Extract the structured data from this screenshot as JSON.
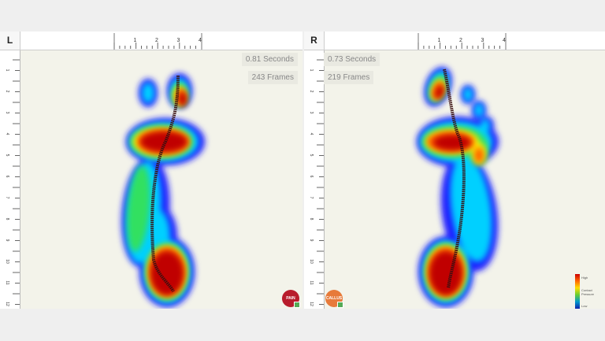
{
  "left": {
    "label": "L",
    "duration": "0.81 Seconds",
    "frames": "243 Frames",
    "badge": {
      "text": "PAIN",
      "color": "#b81c2c"
    }
  },
  "right": {
    "label": "R",
    "duration": "0.73 Seconds",
    "frames": "219 Frames",
    "badge": {
      "text": "CALLUS",
      "color": "#e77a3a"
    }
  },
  "top_ruler_labels": [
    "1",
    "2",
    "3",
    "4"
  ],
  "side_ruler_labels": [
    "1",
    "2",
    "3",
    "4",
    "5",
    "6",
    "7",
    "8",
    "9",
    "10",
    "11",
    "12"
  ],
  "legend": {
    "high": "High",
    "title": "Contact Pressure",
    "low": "Low"
  },
  "pressure_colors": [
    "#1a1aff",
    "#00d0ff",
    "#30e060",
    "#ffee00",
    "#ff6000",
    "#c00000"
  ]
}
